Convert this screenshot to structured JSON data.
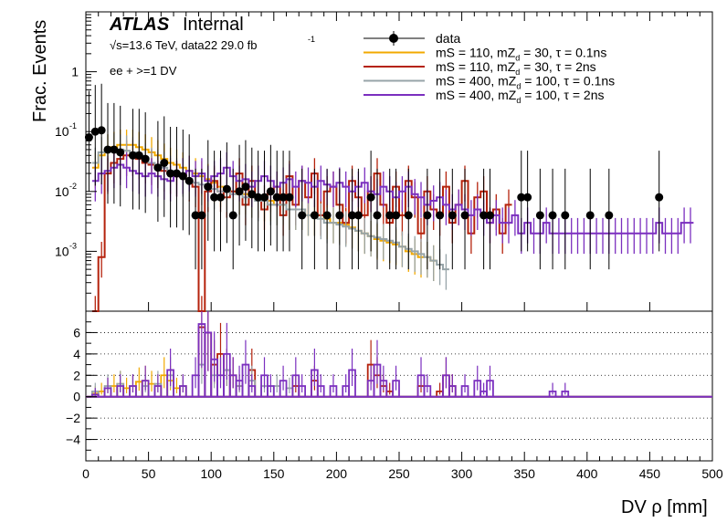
{
  "chart_data": {
    "type": "histogram-ratio",
    "upper": {
      "ylabel": "Frac. Events",
      "yscale": "log",
      "ylim": [
        0.0001,
        10
      ],
      "ytick_labels": [
        "1",
        "10",
        "10",
        "10"
      ],
      "ytick_exponents": [
        "",
        "-1",
        "-2",
        "-3"
      ]
    },
    "lower": {
      "ylim": [
        -6,
        8
      ],
      "ytick_labels": [
        "6",
        "4",
        "2",
        "0",
        "−2",
        "−4"
      ],
      "dotted_grid": true
    },
    "x": {
      "label": "DV ρ [mm]",
      "xlim": [
        0,
        500
      ],
      "tick_labels": [
        "0",
        "50",
        "100",
        "150",
        "200",
        "250",
        "300",
        "350",
        "400",
        "450",
        "500"
      ]
    },
    "annotations": {
      "atlas": "ATLAS",
      "internal": "Internal",
      "energy_lumi": "√s=13.6 TeV, data22 29.0 fb",
      "lumi_exponent": "-1",
      "selection": "ee + >=1 DV"
    },
    "legend": {
      "placement": "top-right",
      "entries": [
        {
          "label": "data",
          "color": "#000000",
          "marker": "circle"
        },
        {
          "label": "mS = 110, mZ",
          "sub": "d",
          "rest": " = 30, τ = 0.1ns",
          "color": "#f2a900"
        },
        {
          "label": "mS = 110, mZ",
          "sub": "d",
          "rest": " = 30, τ = 2ns",
          "color": "#b5220c"
        },
        {
          "label": "mS = 400, mZ",
          "sub": "d",
          "rest": " = 100, τ = 0.1ns",
          "color": "#97a4a8"
        },
        {
          "label": "mS = 400, mZ",
          "sub": "d",
          "rest": " = 100, τ = 2ns",
          "color": "#7b2fbf"
        }
      ]
    },
    "data_points": [
      [
        2.5,
        0.08
      ],
      [
        7.5,
        0.1
      ],
      [
        12.5,
        0.105
      ],
      [
        17.5,
        0.05
      ],
      [
        22.5,
        0.05
      ],
      [
        27.5,
        0.045
      ],
      [
        37.5,
        0.04
      ],
      [
        42.5,
        0.04
      ],
      [
        47.5,
        0.035
      ],
      [
        57.5,
        0.025
      ],
      [
        62.5,
        0.03
      ],
      [
        67.5,
        0.02
      ],
      [
        72.5,
        0.02
      ],
      [
        77.5,
        0.018
      ],
      [
        82.5,
        0.015
      ],
      [
        87.5,
        0.004
      ],
      [
        92.5,
        0.004
      ],
      [
        97.5,
        0.012
      ],
      [
        102.5,
        0.008
      ],
      [
        107.5,
        0.008
      ],
      [
        112.5,
        0.011
      ],
      [
        117.5,
        0.004
      ],
      [
        122.5,
        0.01
      ],
      [
        127.5,
        0.012
      ],
      [
        132.5,
        0.009
      ],
      [
        137.5,
        0.008
      ],
      [
        142.5,
        0.008
      ],
      [
        147.5,
        0.01
      ],
      [
        152.5,
        0.008
      ],
      [
        157.5,
        0.008
      ],
      [
        162.5,
        0.008
      ],
      [
        172.5,
        0.004
      ],
      [
        182.5,
        0.004
      ],
      [
        192.5,
        0.004
      ],
      [
        202.5,
        0.004
      ],
      [
        212.5,
        0.004
      ],
      [
        217.5,
        0.004
      ],
      [
        227.5,
        0.008
      ],
      [
        232.5,
        0.004
      ],
      [
        242.5,
        0.004
      ],
      [
        247.5,
        0.004
      ],
      [
        257.5,
        0.004
      ],
      [
        272.5,
        0.004
      ],
      [
        282.5,
        0.004
      ],
      [
        292.5,
        0.004
      ],
      [
        302.5,
        0.004
      ],
      [
        317.5,
        0.004
      ],
      [
        322.5,
        0.004
      ],
      [
        347.5,
        0.008
      ],
      [
        352.5,
        0.008
      ],
      [
        362.5,
        0.004
      ],
      [
        372.5,
        0.004
      ],
      [
        382.5,
        0.004
      ],
      [
        402.5,
        0.004
      ],
      [
        417.5,
        0.004
      ],
      [
        457.5,
        0.008
      ]
    ],
    "series": [
      {
        "name": "mS = 110, mZd = 30, τ = 0.1ns",
        "color": "#f2a900",
        "bin_width": 5,
        "x0": 5,
        "values": [
          0.025,
          0.04,
          0.05,
          0.055,
          0.06,
          0.06,
          0.06,
          0.055,
          0.05,
          0.045,
          0.04,
          0.035,
          0.03,
          0.028,
          0.025,
          0.022,
          0.02,
          0.018,
          0.016,
          0.014,
          0.012,
          0.011,
          0.01,
          0.009,
          0.009,
          0.008,
          0.008,
          0.007,
          0.007,
          0.006,
          0.006,
          0.005,
          0.005,
          0.005,
          0.004,
          0.004,
          0.004,
          0.0035,
          0.003,
          0.003,
          0.0028,
          0.0025,
          0.0022,
          0.002,
          0.0018,
          0.0016,
          0.0015,
          0.0014,
          0.0013,
          0.0012,
          0.001,
          0.0009,
          0.0008,
          0.0008,
          0.0007
        ]
      },
      {
        "name": "mS = 110, mZd = 30, τ = 2ns",
        "color": "#b5220c",
        "bin_width": 5,
        "x0": 5,
        "values": [
          0.0001,
          0.0008,
          0.02,
          0.03,
          0.035,
          0.04,
          0.04,
          0.035,
          0.03,
          0.028,
          0.025,
          0.022,
          0.02,
          0.018,
          0.02,
          0.015,
          0.012,
          0.0001,
          0.01,
          0.015,
          0.01,
          0.008,
          0.01,
          0.02,
          0.006,
          0.015,
          0.008,
          0.005,
          0.01,
          0.012,
          0.004,
          0.018,
          0.006,
          0.015,
          0.008,
          0.02,
          0.004,
          0.01,
          0.012,
          0.006,
          0.003,
          0.015,
          0.008,
          0.004,
          0.01,
          0.02,
          0.006,
          0.003,
          0.012,
          0.004,
          0.015,
          0.008,
          0.002,
          0.01,
          0.005,
          0.004,
          0.012,
          0.003,
          0.006,
          0.015,
          0.002,
          0.008,
          0.01,
          0.003,
          0.005,
          0.002,
          0.006
        ]
      },
      {
        "name": "mS = 400, mZd = 100, τ = 0.1ns",
        "color": "#97a4a8",
        "bin_width": 5,
        "x0": 5,
        "values": [
          0.03,
          0.045,
          0.05,
          0.052,
          0.05,
          0.048,
          0.045,
          0.04,
          0.035,
          0.03,
          0.028,
          0.025,
          0.022,
          0.02,
          0.018,
          0.016,
          0.014,
          0.013,
          0.012,
          0.011,
          0.01,
          0.01,
          0.009,
          0.009,
          0.008,
          0.008,
          0.007,
          0.007,
          0.006,
          0.006,
          0.006,
          0.005,
          0.005,
          0.005,
          0.004,
          0.004,
          0.0035,
          0.003,
          0.003,
          0.0028,
          0.0026,
          0.0024,
          0.0022,
          0.002,
          0.0018,
          0.0017,
          0.0016,
          0.0015,
          0.0014,
          0.0012,
          0.0011,
          0.001,
          0.0009,
          0.0008,
          0.0007,
          0.0006,
          0.0005
        ]
      },
      {
        "name": "mS = 400, mZd = 100, τ = 2ns",
        "color": "#7b2fbf",
        "bin_width": 5,
        "x0": 5,
        "values": [
          0.015,
          0.02,
          0.022,
          0.025,
          0.028,
          0.025,
          0.022,
          0.02,
          0.018,
          0.02,
          0.018,
          0.016,
          0.015,
          0.018,
          0.02,
          0.022,
          0.018,
          0.02,
          0.015,
          0.018,
          0.02,
          0.025,
          0.018,
          0.015,
          0.016,
          0.012,
          0.015,
          0.018,
          0.015,
          0.012,
          0.014,
          0.016,
          0.012,
          0.015,
          0.014,
          0.012,
          0.015,
          0.013,
          0.012,
          0.014,
          0.012,
          0.01,
          0.012,
          0.014,
          0.01,
          0.009,
          0.012,
          0.01,
          0.008,
          0.01,
          0.012,
          0.009,
          0.008,
          0.006,
          0.007,
          0.008,
          0.006,
          0.005,
          0.006,
          0.005,
          0.004,
          0.005,
          0.004,
          0.003,
          0.004,
          0.003,
          0.003,
          0.004,
          0.002,
          0.003,
          0.002,
          0.002,
          0.003,
          0.002,
          0.002,
          0.002,
          0.002,
          0.002,
          0.002,
          0.002,
          0.002,
          0.002,
          0.002,
          0.002,
          0.002,
          0.002,
          0.002,
          0.002,
          0.002,
          0.002,
          0.003,
          0.002,
          0.002,
          0.002,
          0.003,
          0.003
        ]
      }
    ],
    "ratio_series": [
      {
        "color": "#f2a900",
        "values": [
          [
            5,
            0.3
          ],
          [
            10,
            0.5
          ],
          [
            15,
            0.8
          ],
          [
            20,
            1.0
          ],
          [
            25,
            1.2
          ],
          [
            30,
            0.8
          ],
          [
            35,
            1.0
          ],
          [
            40,
            1.4
          ],
          [
            45,
            1.5
          ],
          [
            50,
            1.2
          ],
          [
            55,
            1.0
          ],
          [
            60,
            2.0
          ],
          [
            65,
            1.5
          ],
          [
            70,
            0.8
          ],
          [
            75,
            1.0
          ]
        ]
      },
      {
        "color": "#b5220c",
        "values": [
          [
            90,
            6.5
          ],
          [
            95,
            6.0
          ],
          [
            100,
            3.0
          ],
          [
            105,
            4.0
          ],
          [
            110,
            2.5
          ],
          [
            115,
            2.0
          ],
          [
            120,
            1.0
          ],
          [
            130,
            2.5
          ],
          [
            165,
            1.0
          ],
          [
            180,
            1.5
          ],
          [
            225,
            3.0
          ],
          [
            230,
            2.0
          ],
          [
            235,
            1.0
          ],
          [
            240,
            0.5
          ],
          [
            265,
            1.0
          ],
          [
            280,
            0.5
          ],
          [
            285,
            2.0
          ],
          [
            290,
            1.0
          ]
        ]
      },
      {
        "color": "#97a4a8",
        "values": [
          [
            5,
            0.5
          ],
          [
            15,
            1.0
          ],
          [
            25,
            1.2
          ],
          [
            35,
            1.0
          ],
          [
            45,
            1.0
          ],
          [
            55,
            1.2
          ],
          [
            65,
            2.0
          ],
          [
            75,
            1.0
          ],
          [
            90,
            3.0
          ],
          [
            100,
            2.0
          ],
          [
            110,
            2.5
          ],
          [
            120,
            1.0
          ],
          [
            130,
            1.5
          ],
          [
            140,
            1.0
          ],
          [
            150,
            1.0
          ],
          [
            160,
            0.8
          ]
        ]
      },
      {
        "color": "#7b2fbf",
        "values": [
          [
            5,
            0.2
          ],
          [
            15,
            0.8
          ],
          [
            25,
            1.0
          ],
          [
            35,
            1.0
          ],
          [
            45,
            1.5
          ],
          [
            55,
            1.0
          ],
          [
            65,
            2.5
          ],
          [
            75,
            1.0
          ],
          [
            85,
            2.0
          ],
          [
            90,
            6.8
          ],
          [
            95,
            6.0
          ],
          [
            100,
            3.5
          ],
          [
            105,
            2.0
          ],
          [
            110,
            4.0
          ],
          [
            115,
            2.0
          ],
          [
            120,
            1.5
          ],
          [
            125,
            3.0
          ],
          [
            130,
            1.0
          ],
          [
            140,
            2.0
          ],
          [
            145,
            1.0
          ],
          [
            155,
            1.5
          ],
          [
            165,
            2.0
          ],
          [
            170,
            1.0
          ],
          [
            180,
            2.5
          ],
          [
            185,
            1.0
          ],
          [
            195,
            1.0
          ],
          [
            205,
            1.0
          ],
          [
            210,
            2.5
          ],
          [
            225,
            1.5
          ],
          [
            230,
            3.0
          ],
          [
            235,
            1.5
          ],
          [
            245,
            1.5
          ],
          [
            265,
            2.0
          ],
          [
            270,
            1.0
          ],
          [
            285,
            2.0
          ],
          [
            290,
            1.0
          ],
          [
            300,
            1.0
          ],
          [
            310,
            1.5
          ],
          [
            315,
            0.5
          ],
          [
            320,
            1.5
          ],
          [
            370,
            0.5
          ],
          [
            380,
            0.5
          ]
        ]
      }
    ]
  }
}
